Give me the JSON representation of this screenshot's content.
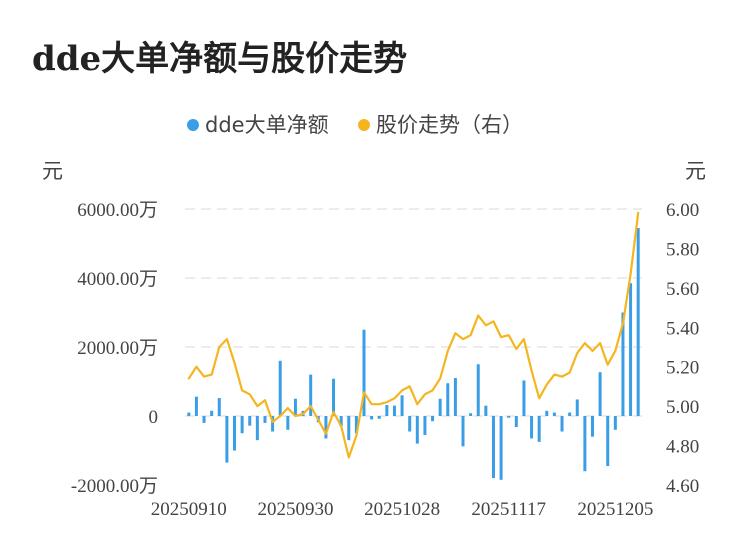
{
  "chart_data": {
    "type": "bar+line",
    "title": "dde大单净额与股价走势",
    "left_unit": "元",
    "right_unit": "元",
    "legend": [
      {
        "label": "dde大单净额",
        "color": "#3a9ee6"
      },
      {
        "label": "股价走势（右）",
        "color": "#f5b51f"
      }
    ],
    "y_left": {
      "min": -2000,
      "max": 6000,
      "ticks": [
        -2000,
        0,
        2000,
        4000,
        6000
      ],
      "tick_labels": [
        "-2000.00万",
        "0",
        "2000.00万",
        "4000.00万",
        "6000.00万"
      ]
    },
    "y_right": {
      "min": 4.6,
      "max": 6.0,
      "ticks": [
        4.6,
        4.8,
        5.0,
        5.2,
        5.4,
        5.6,
        5.8,
        6.0
      ],
      "tick_labels": [
        "4.60",
        "4.80",
        "5.00",
        "5.20",
        "5.40",
        "5.60",
        "5.80",
        "6.00"
      ]
    },
    "x_tick_labels": [
      "20250910",
      "20250930",
      "20251028",
      "20251117",
      "20251205"
    ],
    "x_tick_index": [
      0,
      14,
      28,
      42,
      56
    ],
    "bar_color": "#3a9ee6",
    "line_color": "#f5b51f",
    "series": [
      {
        "name": "dde大单净额",
        "unit": "万元",
        "values": [
          100,
          560,
          -200,
          150,
          520,
          -1350,
          -1000,
          -500,
          -280,
          -700,
          -200,
          -450,
          1600,
          -400,
          500,
          150,
          1200,
          -180,
          -650,
          1080,
          -300,
          -700,
          -500,
          2500,
          -100,
          -80,
          320,
          300,
          600,
          -450,
          -800,
          -550,
          -150,
          500,
          950,
          1100,
          -880,
          80,
          1500,
          300,
          -1800,
          -1850,
          -50,
          -320,
          1030,
          -650,
          -750,
          150,
          100,
          -450,
          100,
          480,
          -1600,
          -600,
          1270,
          -1450,
          -400,
          3000,
          3850,
          5450
        ]
      },
      {
        "name": "股价走势（右）",
        "unit": "元",
        "values": [
          5.14,
          5.2,
          5.15,
          5.16,
          5.3,
          5.34,
          5.22,
          5.08,
          5.06,
          5.0,
          5.03,
          4.92,
          4.95,
          4.99,
          4.95,
          4.96,
          5.0,
          4.93,
          4.86,
          4.97,
          4.9,
          4.74,
          4.85,
          5.07,
          5.01,
          5.01,
          5.02,
          5.04,
          5.08,
          5.1,
          5.01,
          5.06,
          5.08,
          5.14,
          5.28,
          5.37,
          5.34,
          5.36,
          5.46,
          5.41,
          5.43,
          5.35,
          5.36,
          5.29,
          5.34,
          5.18,
          5.04,
          5.11,
          5.16,
          5.15,
          5.17,
          5.27,
          5.32,
          5.28,
          5.32,
          5.21,
          5.28,
          5.42,
          5.67,
          5.98
        ]
      }
    ]
  }
}
